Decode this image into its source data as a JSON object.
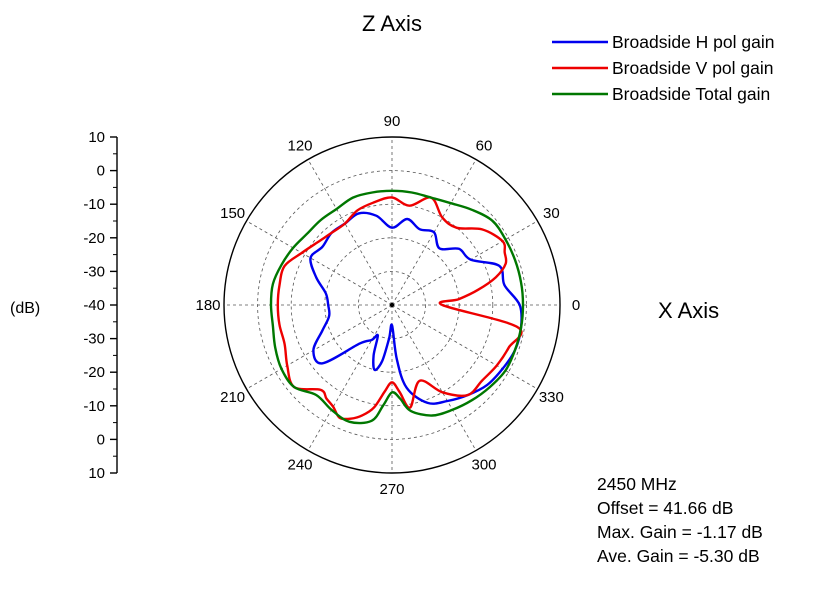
{
  "chart_data": {
    "type": "polar",
    "title": "Z Axis",
    "right_label": "X Axis",
    "radial_unit_label": "(dB)",
    "radial_ticks_top": [
      10,
      0,
      -10,
      -20,
      -30,
      -40
    ],
    "radial_ticks_bottom": [
      -30,
      -20,
      -10,
      0,
      10
    ],
    "radial_range": [
      -40,
      10
    ],
    "angle_labels": [
      0,
      30,
      60,
      90,
      120,
      150,
      180,
      210,
      240,
      270,
      300,
      330
    ],
    "angular_grid_deg": 30,
    "grid": true,
    "legend_position": "top-right",
    "series": [
      {
        "name": "Broadside H pol gain",
        "color": "#0000ee",
        "angles": [
          0,
          10,
          20,
          30,
          40,
          50,
          60,
          70,
          80,
          90,
          100,
          110,
          120,
          130,
          140,
          150,
          160,
          170,
          180,
          190,
          200,
          210,
          220,
          230,
          240,
          245,
          250,
          255,
          260,
          265,
          270,
          275,
          280,
          290,
          300,
          310,
          320,
          330,
          340,
          350
        ],
        "r": [
          -2,
          -6,
          -6,
          -13,
          -14,
          -18,
          -15,
          -16,
          -14,
          -17,
          -13,
          -11,
          -12,
          -12,
          -13,
          -12,
          -16,
          -20,
          -21,
          -21,
          -18,
          -13,
          -13,
          -25,
          -28,
          -30,
          -24,
          -20,
          -23,
          -30,
          -34,
          -24,
          -15,
          -9,
          -7,
          -5,
          -3,
          -2,
          -1,
          -1
        ]
      },
      {
        "name": "Broadside V pol gain",
        "color": "#ee0000",
        "angles": [
          0,
          5,
          10,
          15,
          20,
          25,
          30,
          40,
          50,
          60,
          70,
          80,
          90,
          100,
          110,
          120,
          130,
          140,
          150,
          160,
          170,
          180,
          190,
          200,
          210,
          220,
          230,
          235,
          240,
          245,
          250,
          255,
          260,
          265,
          270,
          275,
          280,
          290,
          300,
          310,
          320,
          330,
          340,
          350
        ],
        "r": [
          -25,
          -20,
          -14,
          -8,
          -4,
          -3,
          -2,
          -5,
          -10,
          -10,
          -6,
          -10,
          -8,
          -9,
          -10,
          -12,
          -12,
          -11,
          -9,
          -6,
          -6,
          -6,
          -6,
          -6,
          -4,
          -2,
          -7,
          -6,
          -5,
          -3,
          -4,
          -6,
          -9,
          -14,
          -17,
          -14,
          -9,
          -16,
          -10,
          -5,
          -5,
          -4,
          -3,
          -2
        ]
      },
      {
        "name": "Broadside Total gain",
        "color": "#007700",
        "angles": [
          0,
          10,
          20,
          30,
          40,
          50,
          60,
          70,
          80,
          90,
          100,
          110,
          120,
          130,
          140,
          150,
          160,
          170,
          180,
          190,
          200,
          210,
          220,
          230,
          240,
          250,
          260,
          265,
          270,
          275,
          280,
          290,
          300,
          310,
          320,
          330,
          340,
          350
        ],
        "r": [
          -1,
          -1,
          -1,
          -1,
          -1,
          -3,
          -5,
          -6,
          -6,
          -6,
          -6,
          -6,
          -7,
          -7,
          -7,
          -6,
          -5,
          -4,
          -4,
          -4,
          -3,
          -2,
          -2,
          -5,
          -4,
          -3,
          -5,
          -10,
          -14,
          -12,
          -8,
          -5,
          -4,
          -3,
          -2,
          -1,
          -1,
          -1
        ]
      }
    ]
  },
  "annotations": {
    "frequency": "2450 MHz",
    "offset": "Offset = 41.66 dB",
    "max_gain": "Max. Gain = -1.17 dB",
    "ave_gain": "Ave. Gain = -5.30 dB"
  }
}
